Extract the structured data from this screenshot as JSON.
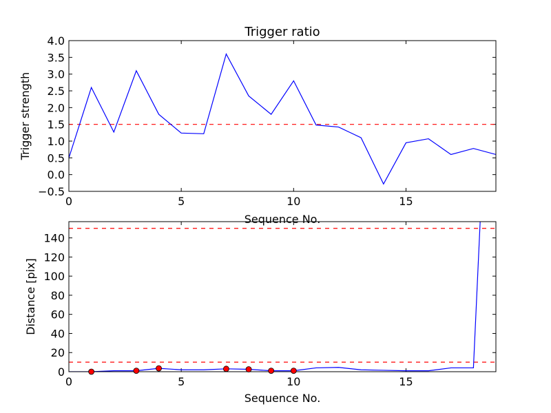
{
  "chart_data": [
    {
      "type": "line",
      "title": "Trigger ratio",
      "xlabel": "Sequence No.",
      "ylabel": "Trigger strength",
      "xlim": [
        0,
        19
      ],
      "ylim": [
        -0.5,
        4.0
      ],
      "xticks": [
        0,
        5,
        10,
        15
      ],
      "xtick_labels": [
        "0",
        "5",
        "10",
        "15"
      ],
      "yticks": [
        -0.5,
        0.0,
        0.5,
        1.0,
        1.5,
        2.0,
        2.5,
        3.0,
        3.5,
        4.0
      ],
      "ytick_labels": [
        "−0.5",
        "0.0",
        "0.5",
        "1.0",
        "1.5",
        "2.0",
        "2.5",
        "3.0",
        "3.5",
        "4.0"
      ],
      "grid": false,
      "series": [
        {
          "color": "#0000ff",
          "style": "solid",
          "x": [
            0,
            1,
            2,
            3,
            4,
            5,
            6,
            7,
            8,
            9,
            10,
            11,
            12,
            13,
            14,
            15,
            16,
            17,
            18,
            19
          ],
          "values": [
            0.5,
            2.6,
            1.27,
            3.1,
            1.8,
            1.24,
            1.22,
            3.6,
            2.35,
            1.8,
            2.8,
            1.48,
            1.42,
            1.1,
            -0.28,
            0.95,
            1.07,
            0.6,
            0.78,
            0.6
          ]
        }
      ],
      "reference_lines": [
        {
          "y": 1.5,
          "color": "#ff0000",
          "style": "dashed"
        }
      ]
    },
    {
      "type": "line",
      "title": "",
      "xlabel": "Sequence No.",
      "ylabel": "Distance [pix]",
      "xlim": [
        0,
        19
      ],
      "ylim": [
        0,
        157
      ],
      "xticks": [
        0,
        5,
        10,
        15
      ],
      "xtick_labels": [
        "0",
        "5",
        "10",
        "15"
      ],
      "yticks": [
        0,
        20,
        40,
        60,
        80,
        100,
        120,
        140
      ],
      "ytick_labels": [
        "0",
        "20",
        "40",
        "60",
        "80",
        "100",
        "120",
        "140"
      ],
      "grid": false,
      "series": [
        {
          "color": "#0000ff",
          "style": "solid",
          "x": [
            0,
            1,
            2,
            3,
            4,
            5,
            6,
            7,
            8,
            9,
            10,
            11,
            12,
            13,
            14,
            15,
            16,
            17,
            18,
            18.3
          ],
          "values": [
            0,
            0,
            1,
            1,
            3.5,
            2,
            2,
            3,
            2.5,
            1,
            1,
            4,
            4.5,
            2,
            1.5,
            1,
            1,
            4,
            4,
            157
          ]
        }
      ],
      "markers": {
        "color": "#ff0000",
        "x": [
          1,
          3,
          4,
          7,
          8,
          9,
          10
        ],
        "values": [
          0,
          1,
          3.5,
          3,
          2.5,
          1,
          1
        ]
      },
      "reference_lines": [
        {
          "y": 10,
          "color": "#ff0000",
          "style": "dashed"
        },
        {
          "y": 150,
          "color": "#ff0000",
          "style": "dashed"
        }
      ]
    }
  ]
}
